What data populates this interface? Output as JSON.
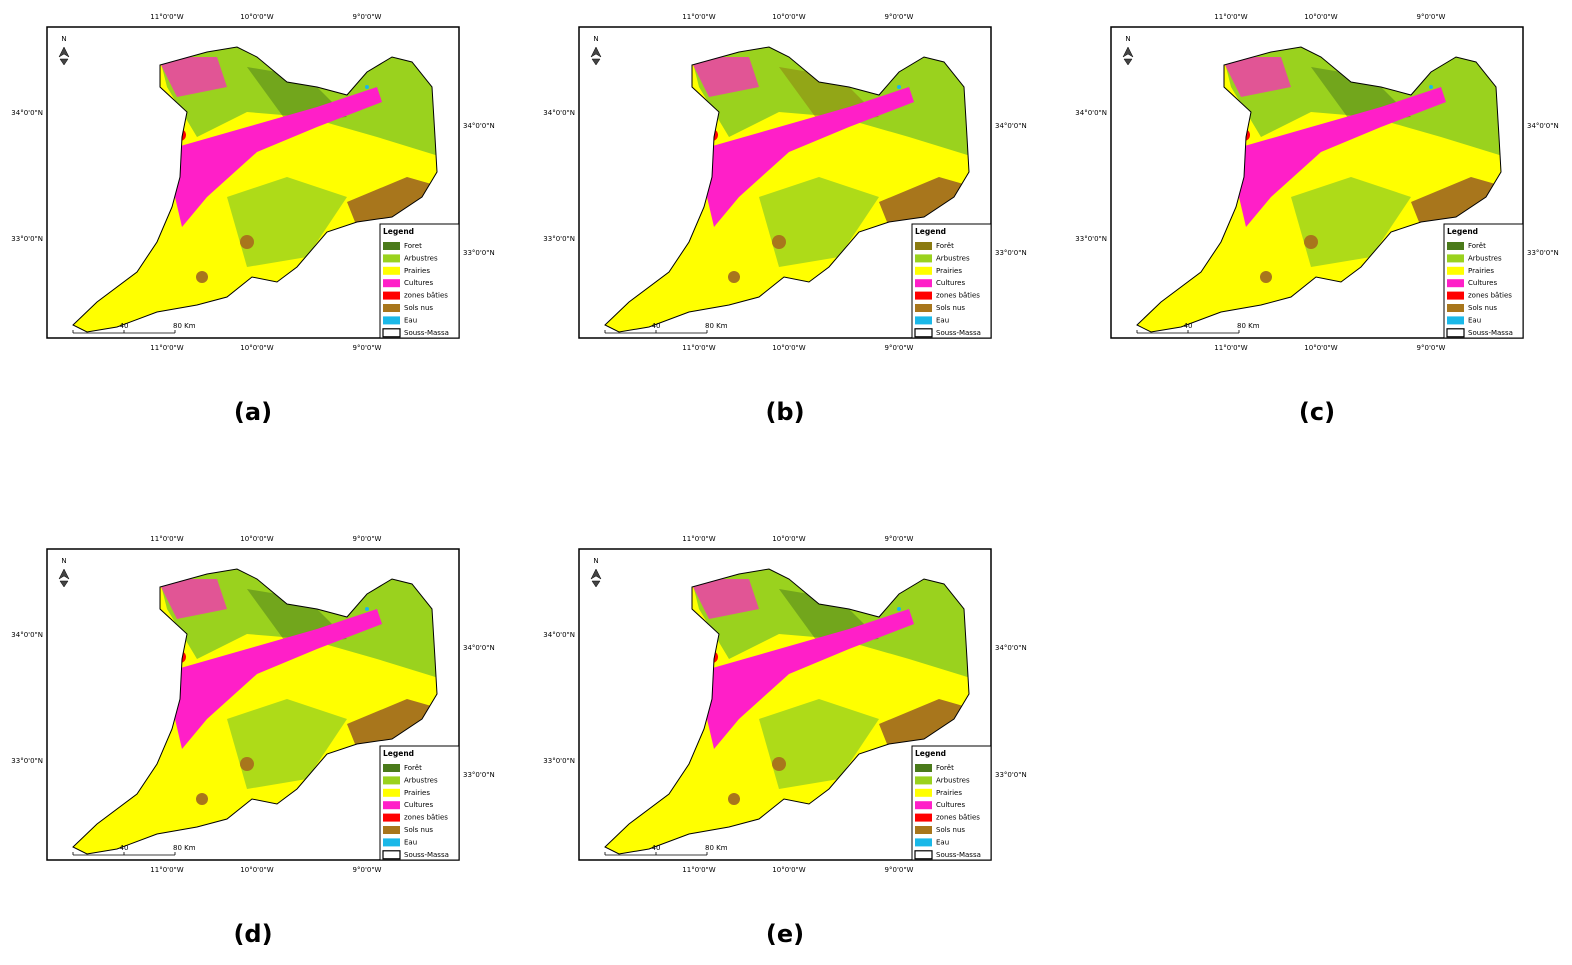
{
  "panels": [
    {
      "label": "(a)",
      "north": "N",
      "top_longitudes": [
        "11°0'0\"W",
        "10°0'0\"W",
        "9°0'0\"W"
      ],
      "bottom_longitudes": [
        "11°0'0\"W",
        "10°0'0\"W",
        "9°0'0\"W"
      ],
      "left_latitudes": [
        "34°0'0\"N",
        "33°0'0\"N"
      ],
      "right_latitudes": [
        "34°0'0\"N",
        "33°0'0\"N"
      ],
      "scale": [
        "40",
        "80 Km"
      ],
      "legend": {
        "title": "Legend",
        "items": [
          {
            "name": "Foret",
            "color": "#4a7a1a"
          },
          {
            "name": "Arbustres",
            "color": "#9ad21e"
          },
          {
            "name": "Prairies",
            "color": "#ffff00"
          },
          {
            "name": "Cultures",
            "color": "#ff1fc8"
          },
          {
            "name": "zones bâties",
            "color": "#ff0000"
          },
          {
            "name": "Sols nus",
            "color": "#a8761c"
          },
          {
            "name": "Eau",
            "color": "#1ab8e8"
          },
          {
            "name": "Souss-Massa",
            "color": "#ffffff"
          }
        ]
      }
    },
    {
      "label": "(b)",
      "north": "N",
      "top_longitudes": [
        "11°0'0\"W",
        "10°0'0\"W",
        "9°0'0\"W"
      ],
      "bottom_longitudes": [
        "11°0'0\"W",
        "10°0'0\"W",
        "9°0'0\"W"
      ],
      "left_latitudes": [
        "34°0'0\"N",
        "33°0'0\"N"
      ],
      "right_latitudes": [
        "34°0'0\"N",
        "33°0'0\"N"
      ],
      "scale": [
        "40",
        "80 Km"
      ],
      "legend": {
        "title": "Legend",
        "items": [
          {
            "name": "Forêt",
            "color": "#8a7a10"
          },
          {
            "name": "Arbustres",
            "color": "#9ad21e"
          },
          {
            "name": "Prairies",
            "color": "#ffff00"
          },
          {
            "name": "Cultures",
            "color": "#ff1fc8"
          },
          {
            "name": "zones bâties",
            "color": "#ff0000"
          },
          {
            "name": "Sols nus",
            "color": "#a8761c"
          },
          {
            "name": "Eau",
            "color": "#1ab8e8"
          },
          {
            "name": "Souss-Massa",
            "color": "#ffffff"
          }
        ]
      }
    },
    {
      "label": "(c)",
      "north": "N",
      "top_longitudes": [
        "11°0'0\"W",
        "10°0'0\"W",
        "9°0'0\"W"
      ],
      "bottom_longitudes": [
        "11°0'0\"W",
        "10°0'0\"W",
        "9°0'0\"W"
      ],
      "left_latitudes": [
        "34°0'0\"N",
        "33°0'0\"N"
      ],
      "right_latitudes": [
        "34°0'0\"N",
        "33°0'0\"N"
      ],
      "scale": [
        "40",
        "80 Km"
      ],
      "legend": {
        "title": "Legend",
        "items": [
          {
            "name": "Forêt",
            "color": "#4a7a1a"
          },
          {
            "name": "Arbustres",
            "color": "#9ad21e"
          },
          {
            "name": "Prairies",
            "color": "#ffff00"
          },
          {
            "name": "Cultures",
            "color": "#ff1fc8"
          },
          {
            "name": "zones bâties",
            "color": "#ff0000"
          },
          {
            "name": "Sols nus",
            "color": "#a8761c"
          },
          {
            "name": "Eau",
            "color": "#1ab8e8"
          },
          {
            "name": "Souss-Massa",
            "color": "#ffffff"
          }
        ]
      }
    },
    {
      "label": "(d)",
      "north": "N",
      "top_longitudes": [
        "11°0'0\"W",
        "10°0'0\"W",
        "9°0'0\"W"
      ],
      "bottom_longitudes": [
        "11°0'0\"W",
        "10°0'0\"W",
        "9°0'0\"W"
      ],
      "left_latitudes": [
        "34°0'0\"N",
        "33°0'0\"N"
      ],
      "right_latitudes": [
        "34°0'0\"N",
        "33°0'0\"N"
      ],
      "scale": [
        "40",
        "80 Km"
      ],
      "legend": {
        "title": "Legend",
        "items": [
          {
            "name": "Forêt",
            "color": "#4a7a1a"
          },
          {
            "name": "Arbustres",
            "color": "#9ad21e"
          },
          {
            "name": "Prairies",
            "color": "#ffff00"
          },
          {
            "name": "Cultures",
            "color": "#ff1fc8"
          },
          {
            "name": "zones bâties",
            "color": "#ff0000"
          },
          {
            "name": "Sols nus",
            "color": "#a8761c"
          },
          {
            "name": "Eau",
            "color": "#1ab8e8"
          },
          {
            "name": "Souss-Massa",
            "color": "#ffffff"
          }
        ]
      }
    },
    {
      "label": "(e)",
      "north": "N",
      "top_longitudes": [
        "11°0'0\"W",
        "10°0'0\"W",
        "9°0'0\"W"
      ],
      "bottom_longitudes": [
        "11°0'0\"W",
        "10°0'0\"W",
        "9°0'0\"W"
      ],
      "left_latitudes": [
        "34°0'0\"N",
        "33°0'0\"N"
      ],
      "right_latitudes": [
        "34°0'0\"N",
        "33°0'0\"N"
      ],
      "scale": [
        "40",
        "80 Km"
      ],
      "legend": {
        "title": "Legend",
        "items": [
          {
            "name": "Forêt",
            "color": "#4a7a1a"
          },
          {
            "name": "Arbustres",
            "color": "#9ad21e"
          },
          {
            "name": "Prairies",
            "color": "#ffff00"
          },
          {
            "name": "Cultures",
            "color": "#ff1fc8"
          },
          {
            "name": "zones bâties",
            "color": "#ff0000"
          },
          {
            "name": "Sols nus",
            "color": "#a8761c"
          },
          {
            "name": "Eau",
            "color": "#1ab8e8"
          },
          {
            "name": "Souss-Massa",
            "color": "#ffffff"
          }
        ]
      }
    }
  ]
}
